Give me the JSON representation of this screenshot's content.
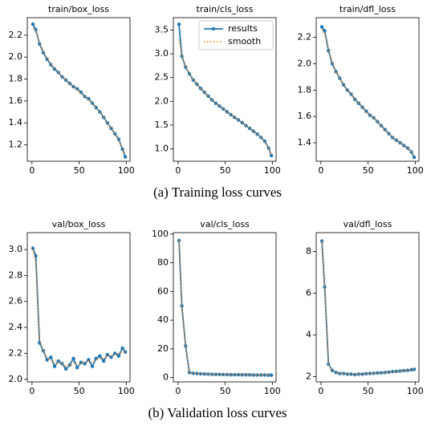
{
  "captions": [
    "(a)  Training loss curves",
    "(b)  Validation loss curves"
  ],
  "chart_data": [
    {
      "type": "line",
      "title": "train/box_loss",
      "x": [
        1,
        4,
        8,
        12,
        16,
        20,
        24,
        28,
        32,
        36,
        40,
        44,
        48,
        52,
        56,
        60,
        64,
        68,
        72,
        76,
        80,
        84,
        88,
        92,
        96,
        99
      ],
      "series": [
        {
          "name": "results",
          "color": "#1f77b4",
          "values": [
            2.3,
            2.25,
            2.12,
            2.04,
            1.98,
            1.93,
            1.89,
            1.86,
            1.82,
            1.79,
            1.76,
            1.73,
            1.71,
            1.68,
            1.64,
            1.62,
            1.58,
            1.54,
            1.5,
            1.45,
            1.4,
            1.35,
            1.3,
            1.25,
            1.16,
            1.09
          ]
        },
        {
          "name": "smooth",
          "color": "#ff7f0e",
          "values": [
            2.27,
            2.24,
            2.13,
            2.05,
            1.99,
            1.94,
            1.9,
            1.86,
            1.82,
            1.79,
            1.76,
            1.73,
            1.7,
            1.67,
            1.64,
            1.61,
            1.58,
            1.54,
            1.5,
            1.45,
            1.4,
            1.35,
            1.3,
            1.24,
            1.17,
            1.11
          ]
        }
      ],
      "xlim": [
        -5,
        104
      ],
      "xticks": [
        0,
        50,
        100
      ],
      "ylim": [
        1.05,
        2.36
      ],
      "yticks": [
        1.2,
        1.4,
        1.6,
        1.8,
        {
          "value": 2,
          "label": "2.0"
        },
        2.2
      ]
    },
    {
      "type": "line",
      "title": "train/cls_loss",
      "x": [
        1,
        4,
        8,
        12,
        16,
        20,
        24,
        28,
        32,
        36,
        40,
        44,
        48,
        52,
        56,
        60,
        64,
        68,
        72,
        76,
        80,
        84,
        88,
        92,
        96,
        99
      ],
      "series": [
        {
          "name": "results",
          "color": "#1f77b4",
          "values": [
            3.62,
            2.95,
            2.72,
            2.58,
            2.45,
            2.36,
            2.27,
            2.19,
            2.11,
            2.03,
            1.96,
            1.9,
            1.84,
            1.78,
            1.72,
            1.66,
            1.61,
            1.55,
            1.49,
            1.43,
            1.37,
            1.31,
            1.24,
            1.16,
            1.02,
            0.86
          ]
        },
        {
          "name": "smooth",
          "color": "#ff7f0e",
          "values": [
            3.3,
            2.98,
            2.73,
            2.58,
            2.45,
            2.36,
            2.27,
            2.19,
            2.11,
            2.03,
            1.96,
            1.9,
            1.84,
            1.78,
            1.72,
            1.66,
            1.61,
            1.55,
            1.49,
            1.43,
            1.37,
            1.31,
            1.24,
            1.15,
            1.02,
            0.88
          ]
        }
      ],
      "xlim": [
        -5,
        104
      ],
      "xticks": [
        0,
        50,
        100
      ],
      "ylim": [
        0.74,
        3.76
      ],
      "yticks": [
        {
          "value": 1,
          "label": "1.0"
        },
        1.5,
        {
          "value": 2,
          "label": "2.0"
        },
        2.5,
        {
          "value": 3,
          "label": "3.0"
        },
        3.5
      ],
      "legend": "upper right"
    },
    {
      "type": "line",
      "title": "train/dfl_loss",
      "x": [
        1,
        4,
        8,
        12,
        16,
        20,
        24,
        28,
        32,
        36,
        40,
        44,
        48,
        52,
        56,
        60,
        64,
        68,
        72,
        76,
        80,
        84,
        88,
        92,
        96,
        99
      ],
      "series": [
        {
          "name": "results",
          "color": "#1f77b4",
          "values": [
            2.28,
            2.25,
            2.1,
            2.0,
            1.94,
            1.89,
            1.84,
            1.8,
            1.77,
            1.73,
            1.7,
            1.67,
            1.64,
            1.61,
            1.59,
            1.56,
            1.53,
            1.5,
            1.47,
            1.44,
            1.42,
            1.4,
            1.38,
            1.36,
            1.33,
            1.29
          ]
        },
        {
          "name": "smooth",
          "color": "#ff7f0e",
          "values": [
            2.26,
            2.23,
            2.11,
            2.01,
            1.94,
            1.89,
            1.84,
            1.8,
            1.77,
            1.73,
            1.7,
            1.67,
            1.64,
            1.61,
            1.59,
            1.56,
            1.53,
            1.5,
            1.47,
            1.44,
            1.42,
            1.4,
            1.38,
            1.36,
            1.33,
            1.3
          ]
        }
      ],
      "xlim": [
        -5,
        104
      ],
      "xticks": [
        0,
        50,
        100
      ],
      "ylim": [
        1.26,
        2.35
      ],
      "yticks": [
        1.4,
        1.6,
        1.8,
        {
          "value": 2,
          "label": "2.0"
        },
        2.2
      ]
    },
    {
      "type": "line",
      "title": "val/box_loss",
      "x": [
        1,
        4,
        8,
        12,
        16,
        20,
        24,
        28,
        32,
        36,
        40,
        44,
        48,
        52,
        56,
        60,
        64,
        68,
        72,
        76,
        80,
        84,
        88,
        92,
        96,
        99
      ],
      "series": [
        {
          "name": "results",
          "color": "#1f77b4",
          "values": [
            3.01,
            2.95,
            2.28,
            2.22,
            2.15,
            2.17,
            2.1,
            2.14,
            2.12,
            2.08,
            2.11,
            2.16,
            2.09,
            2.13,
            2.12,
            2.15,
            2.1,
            2.16,
            2.18,
            2.14,
            2.19,
            2.17,
            2.2,
            2.18,
            2.24,
            2.21
          ]
        },
        {
          "name": "smooth",
          "color": "#ff7f0e",
          "values": [
            3.0,
            2.9,
            2.3,
            2.22,
            2.16,
            2.15,
            2.12,
            2.13,
            2.12,
            2.1,
            2.11,
            2.13,
            2.11,
            2.12,
            2.13,
            2.14,
            2.13,
            2.15,
            2.16,
            2.16,
            2.18,
            2.18,
            2.19,
            2.2,
            2.21,
            2.21
          ]
        }
      ],
      "xlim": [
        -5,
        104
      ],
      "xticks": [
        0,
        50,
        100
      ],
      "ylim": [
        1.98,
        3.13
      ],
      "yticks": [
        {
          "value": 2,
          "label": "2.0"
        },
        2.2,
        2.4,
        2.6,
        2.8,
        {
          "value": 3,
          "label": "3.0"
        }
      ]
    },
    {
      "type": "line",
      "title": "val/cls_loss",
      "x": [
        1,
        4,
        8,
        12,
        16,
        20,
        24,
        28,
        32,
        36,
        40,
        44,
        48,
        52,
        56,
        60,
        64,
        68,
        72,
        76,
        80,
        84,
        88,
        92,
        96,
        99
      ],
      "series": [
        {
          "name": "results",
          "color": "#1f77b4",
          "values": [
            95.5,
            50,
            22,
            3.5,
            3.0,
            2.8,
            2.6,
            2.5,
            2.4,
            2.3,
            2.2,
            2.2,
            2.1,
            2.1,
            2.0,
            2.0,
            2.0,
            1.9,
            1.9,
            1.9,
            1.8,
            1.8,
            1.8,
            1.8,
            1.7,
            1.7
          ]
        },
        {
          "name": "smooth",
          "color": "#ff7f0e",
          "values": [
            95.5,
            50,
            22,
            3.5,
            3.0,
            2.8,
            2.6,
            2.5,
            2.4,
            2.3,
            2.2,
            2.2,
            2.1,
            2.1,
            2.0,
            2.0,
            2.0,
            1.9,
            1.9,
            1.9,
            1.8,
            1.8,
            1.8,
            1.8,
            1.7,
            1.7
          ]
        }
      ],
      "xlim": [
        -5,
        104
      ],
      "xticks": [
        0,
        50,
        100
      ],
      "ylim": [
        -3,
        101
      ],
      "yticks": [
        0,
        20,
        40,
        60,
        80,
        100
      ]
    },
    {
      "type": "line",
      "title": "val/dfl_loss",
      "x": [
        1,
        4,
        8,
        12,
        16,
        20,
        24,
        28,
        32,
        36,
        40,
        44,
        48,
        52,
        56,
        60,
        64,
        68,
        72,
        76,
        80,
        84,
        88,
        92,
        96,
        99
      ],
      "series": [
        {
          "name": "results",
          "color": "#1f77b4",
          "values": [
            8.5,
            6.3,
            2.6,
            2.3,
            2.2,
            2.15,
            2.15,
            2.12,
            2.12,
            2.1,
            2.12,
            2.12,
            2.14,
            2.15,
            2.16,
            2.18,
            2.18,
            2.2,
            2.22,
            2.24,
            2.25,
            2.27,
            2.29,
            2.3,
            2.33,
            2.35
          ]
        },
        {
          "name": "smooth",
          "color": "#ff7f0e",
          "values": [
            8.5,
            6.3,
            2.6,
            2.3,
            2.2,
            2.16,
            2.14,
            2.13,
            2.12,
            2.11,
            2.12,
            2.12,
            2.14,
            2.15,
            2.16,
            2.17,
            2.18,
            2.2,
            2.22,
            2.23,
            2.25,
            2.27,
            2.29,
            2.3,
            2.33,
            2.35
          ]
        }
      ],
      "xlim": [
        -5,
        104
      ],
      "xticks": [
        0,
        50,
        100
      ],
      "ylim": [
        1.75,
        8.9
      ],
      "yticks": [
        2,
        4,
        6,
        8
      ]
    }
  ]
}
